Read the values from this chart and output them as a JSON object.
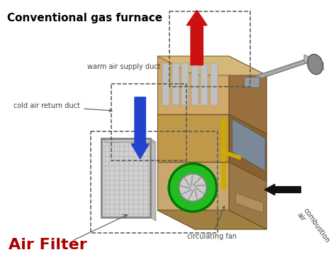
{
  "title": "Conventional gas furnace",
  "title_fontsize": 11,
  "title_color": "#000000",
  "bg_color": "#ffffff",
  "labels": {
    "warm_air": "warm air supply duct",
    "cold_air": "cold air return duct",
    "air_filter": "Air Filter",
    "combustion": "combustion\nair",
    "circulating": "circulating fan"
  },
  "label_color": "#444444",
  "label_fontsize": 7,
  "air_filter_color": "#aa0000",
  "air_filter_fontsize": 16,
  "red_arrow_color": "#cc1111",
  "blue_arrow_color": "#2244cc",
  "black_arrow_color": "#111111",
  "furnace_front_color": "#c8a870",
  "furnace_side_color": "#9a7848",
  "furnace_top_color": "#b8955a",
  "furnace_top_face": "#d4b87a",
  "exhaust_color": "#999999",
  "exhaust_dark": "#777777",
  "fan_outer_color": "#22bb22",
  "fan_inner_color": "#dddddd",
  "filter_bg": "#cccccc",
  "filter_frame": "#aaaaaa",
  "dashed_color": "#555555",
  "figsize": [
    4.74,
    3.76
  ],
  "dpi": 100
}
